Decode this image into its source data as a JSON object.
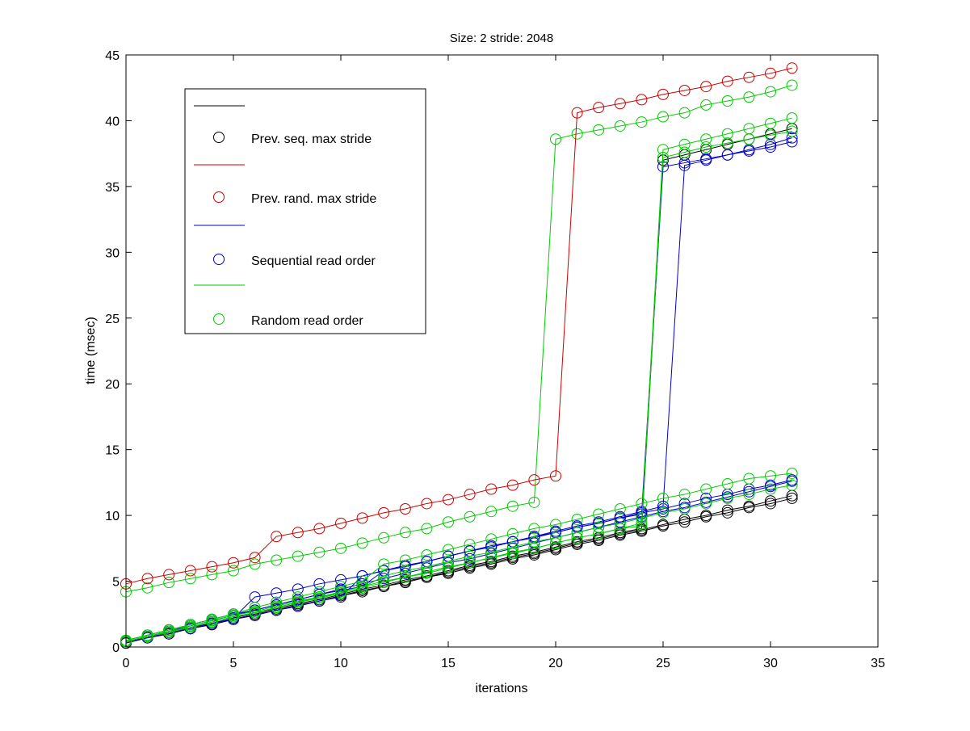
{
  "chart_data": {
    "type": "line",
    "title": "Size: 2 stride: 2048",
    "xlabel": "iterations",
    "ylabel": "time (msec)",
    "xlim": [
      0,
      35
    ],
    "ylim": [
      0,
      45
    ],
    "xticks": [
      0,
      5,
      10,
      15,
      20,
      25,
      30,
      35
    ],
    "yticks": [
      0,
      5,
      10,
      15,
      20,
      25,
      30,
      35,
      40,
      45
    ],
    "grid": false,
    "legend_position": "top-left",
    "legend": [
      {
        "label": "",
        "color": "#000000",
        "style": "line"
      },
      {
        "label": "Prev. seq. max stride",
        "color": "#000000",
        "style": "marker"
      },
      {
        "label": "",
        "color": "#cc0000",
        "style": "line"
      },
      {
        "label": "Prev. rand. max stride",
        "color": "#cc0000",
        "style": "marker"
      },
      {
        "label": "",
        "color": "#0000cc",
        "style": "line"
      },
      {
        "label": "Sequential read order",
        "color": "#0000cc",
        "style": "marker"
      },
      {
        "label": "",
        "color": "#00cc00",
        "style": "line"
      },
      {
        "label": "Random read order",
        "color": "#00cc00",
        "style": "marker"
      }
    ],
    "x": [
      0,
      1,
      2,
      3,
      4,
      5,
      6,
      7,
      8,
      9,
      10,
      11,
      12,
      13,
      14,
      15,
      16,
      17,
      18,
      19,
      20,
      21,
      22,
      23,
      24,
      25,
      26,
      27,
      28,
      29,
      30,
      31
    ],
    "series": [
      {
        "name": "Prev. seq. max stride",
        "color": "#000000",
        "values": [
          0.3,
          0.7,
          1.0,
          1.4,
          1.7,
          2.1,
          2.4,
          2.8,
          3.1,
          3.5,
          3.9,
          4.2,
          4.6,
          4.9,
          5.3,
          5.6,
          6.0,
          6.3,
          6.7,
          7.0,
          7.4,
          7.8,
          8.1,
          8.5,
          8.8,
          9.2,
          9.5,
          9.9,
          10.2,
          10.6,
          10.9,
          11.3
        ]
      },
      {
        "name": "Prev. seq. max stride",
        "color": "#000000",
        "values": [
          0.4,
          0.8,
          1.1,
          1.5,
          1.8,
          2.2,
          2.6,
          2.9,
          3.3,
          3.6,
          4.0,
          4.4,
          4.7,
          5.1,
          5.4,
          5.8,
          6.2,
          6.5,
          6.9,
          7.2,
          7.6,
          8.0,
          8.3,
          8.7,
          9.0,
          37.0,
          37.4,
          37.8,
          38.2,
          38.6,
          39.0,
          39.4
        ]
      },
      {
        "name": "Prev. seq. max stride",
        "color": "#000000",
        "values": [
          0.3,
          0.7,
          1.0,
          1.4,
          1.7,
          2.1,
          2.5,
          2.8,
          3.2,
          3.5,
          3.9,
          4.3,
          4.6,
          5.0,
          5.3,
          5.7,
          6.1,
          6.4,
          6.8,
          7.1,
          7.5,
          7.9,
          8.2,
          8.6,
          8.9,
          9.3,
          9.7,
          10.0,
          10.4,
          10.7,
          11.1,
          11.5
        ]
      },
      {
        "name": "Sequential read order",
        "color": "#0000cc",
        "values": [
          0.5,
          0.9,
          1.3,
          1.7,
          2.1,
          2.5,
          2.8,
          3.2,
          3.6,
          4.0,
          4.4,
          4.8,
          5.2,
          5.6,
          6.0,
          6.4,
          6.7,
          7.1,
          7.5,
          7.9,
          8.3,
          8.7,
          9.1,
          9.5,
          9.9,
          10.3,
          10.6,
          11.0,
          11.4,
          11.8,
          12.2,
          12.6
        ]
      },
      {
        "name": "Sequential read order",
        "color": "#0000cc",
        "values": [
          0.4,
          0.8,
          1.1,
          1.4,
          1.8,
          2.2,
          3.8,
          4.1,
          4.4,
          4.8,
          5.1,
          5.4,
          5.8,
          6.2,
          6.5,
          6.9,
          7.3,
          7.6,
          8.0,
          8.3,
          8.7,
          9.1,
          9.4,
          9.8,
          10.1,
          36.5,
          36.8,
          37.1,
          37.4,
          37.7,
          38.0,
          38.4
        ]
      },
      {
        "name": "Sequential read order",
        "color": "#0000cc",
        "values": [
          0.4,
          0.8,
          1.2,
          1.6,
          2.0,
          2.4,
          2.8,
          3.2,
          3.6,
          4.0,
          4.3,
          4.6,
          5.8,
          6.2,
          6.5,
          6.9,
          7.3,
          7.7,
          8.0,
          8.4,
          8.8,
          9.2,
          9.5,
          9.9,
          10.3,
          10.7,
          36.6,
          37.0,
          37.4,
          37.8,
          38.2,
          38.7
        ]
      },
      {
        "name": "Sequential read order",
        "color": "#0000cc",
        "values": [
          0.4,
          0.7,
          1.1,
          1.4,
          1.8,
          2.1,
          2.4,
          2.8,
          3.1,
          3.5,
          3.8,
          5.4,
          5.8,
          6.1,
          6.5,
          6.9,
          7.3,
          7.6,
          8.0,
          8.4,
          8.7,
          9.1,
          9.4,
          9.8,
          10.2,
          10.5,
          10.9,
          11.3,
          11.6,
          12.0,
          12.3,
          12.7
        ]
      },
      {
        "name": "Random read order",
        "color": "#00cc00",
        "values": [
          0.5,
          0.9,
          1.3,
          1.7,
          2.1,
          2.5,
          3.0,
          3.4,
          3.8,
          4.2,
          4.6,
          5.0,
          6.3,
          6.6,
          7.0,
          7.4,
          7.8,
          8.2,
          8.6,
          9.0,
          9.3,
          9.7,
          10.1,
          10.5,
          10.9,
          11.3,
          11.6,
          12.0,
          12.4,
          12.8,
          13.0,
          13.2
        ]
      },
      {
        "name": "Random read order",
        "color": "#00cc00",
        "values": [
          0.5,
          0.9,
          1.3,
          1.6,
          2.0,
          2.4,
          2.7,
          3.1,
          3.5,
          3.8,
          4.2,
          4.6,
          5.0,
          5.3,
          5.7,
          6.1,
          6.4,
          6.8,
          7.2,
          7.5,
          7.9,
          8.3,
          8.6,
          9.0,
          9.4,
          37.8,
          38.2,
          38.6,
          39.0,
          39.4,
          39.8,
          40.2
        ]
      },
      {
        "name": "Random read order",
        "color": "#00cc00",
        "values": [
          0.4,
          0.8,
          1.2,
          1.5,
          1.9,
          2.3,
          2.6,
          3.0,
          3.4,
          3.7,
          4.1,
          4.5,
          5.4,
          5.8,
          6.1,
          6.5,
          6.9,
          7.2,
          7.6,
          8.0,
          8.3,
          8.7,
          9.1,
          9.4,
          9.8,
          10.2,
          10.5,
          10.9,
          11.3,
          11.6,
          12.0,
          12.3
        ]
      },
      {
        "name": "Random read order",
        "color": "#00cc00",
        "values": [
          0.4,
          0.8,
          1.1,
          1.5,
          1.9,
          2.3,
          2.6,
          3.0,
          3.4,
          3.8,
          4.1,
          4.5,
          4.9,
          5.3,
          5.6,
          6.0,
          6.4,
          6.8,
          7.1,
          7.5,
          7.9,
          8.3,
          8.6,
          9.0,
          9.2,
          37.2,
          37.6,
          38.0,
          38.3,
          38.6,
          38.9,
          39.2
        ]
      },
      {
        "name": "Random read order",
        "color": "#00cc00",
        "values": [
          4.2,
          4.5,
          4.9,
          5.2,
          5.5,
          5.8,
          6.3,
          6.6,
          6.9,
          7.2,
          7.5,
          7.9,
          8.3,
          8.7,
          9.0,
          9.5,
          9.9,
          10.3,
          10.7,
          11.0,
          38.6,
          39.0,
          39.3,
          39.6,
          39.9,
          40.3,
          40.6,
          41.2,
          41.5,
          41.8,
          42.2,
          42.7
        ]
      },
      {
        "name": "Prev. rand. max stride",
        "color": "#cc0000",
        "values": [
          4.8,
          5.2,
          5.5,
          5.8,
          6.1,
          6.4,
          6.8,
          8.4,
          8.7,
          9.0,
          9.4,
          9.8,
          10.2,
          10.5,
          10.9,
          11.2,
          11.6,
          12.0,
          12.3,
          12.7,
          13.0,
          40.6,
          41.0,
          41.3,
          41.6,
          42.0,
          42.3,
          42.6,
          43.0,
          43.3,
          43.6,
          44.0
        ]
      }
    ]
  }
}
